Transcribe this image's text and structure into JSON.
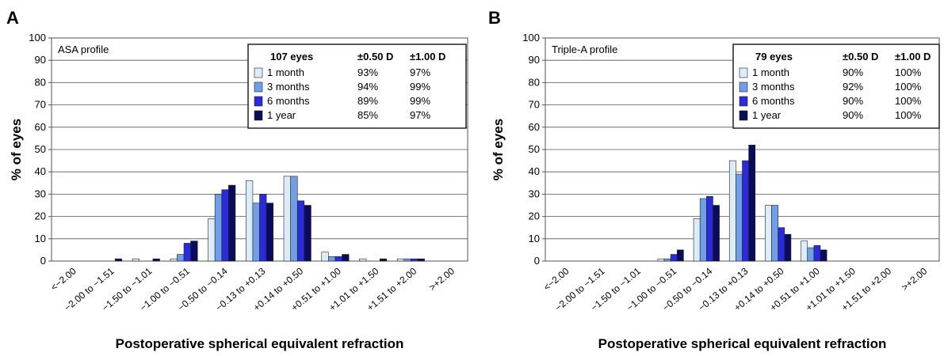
{
  "chart_data": [
    {
      "type": "bar",
      "panel": "A",
      "title": "ASA profile",
      "ylabel": "% of eyes",
      "xlabel": "Postoperative spherical equivalent refraction",
      "categories": [
        "<−2.00",
        "−2.00 to −1.51",
        "−1.50 to −1.01",
        "−1.00 to −0.51",
        "−0.50 to −0.14",
        "−0.13 to +0.13",
        "+0.14 to +0.50",
        "+0.51 to +1.00",
        "+1.01 to +1.50",
        "+1.51 to +2.00",
        ">+2.00"
      ],
      "series": [
        {
          "name": "1 month",
          "color": "#dcecf8",
          "values": [
            0,
            0,
            1,
            1,
            19,
            36,
            38,
            4,
            1,
            1,
            0
          ]
        },
        {
          "name": "3 months",
          "color": "#6f9fe6",
          "values": [
            0,
            0,
            0,
            3,
            30,
            26,
            38,
            2,
            0,
            1,
            0
          ]
        },
        {
          "name": "6 months",
          "color": "#2b2bd9",
          "values": [
            0,
            0,
            0,
            8,
            32,
            30,
            27,
            2,
            0,
            1,
            0
          ]
        },
        {
          "name": "1 year",
          "color": "#0b0b5c",
          "values": [
            0,
            1,
            1,
            9,
            34,
            26,
            25,
            3,
            1,
            1,
            0
          ]
        }
      ],
      "legend_table": {
        "header": [
          "107 eyes",
          "±0.50 D",
          "±1.00 D"
        ],
        "rows": [
          [
            "93%",
            "97%"
          ],
          [
            "94%",
            "99%"
          ],
          [
            "89%",
            "99%"
          ],
          [
            "85%",
            "97%"
          ]
        ]
      },
      "ylim": [
        0,
        100
      ],
      "yticks": [
        0,
        10,
        20,
        30,
        40,
        50,
        60,
        70,
        80,
        90,
        100
      ],
      "grid": true
    },
    {
      "type": "bar",
      "panel": "B",
      "title": "Triple-A profile",
      "ylabel": "% of eyes",
      "xlabel": "Postoperative spherical equivalent refraction",
      "categories": [
        "<−2.00",
        "−2.00 to −1.51",
        "−1.50 to −1.01",
        "−1.00 to −0.51",
        "−0.50 to −0.14",
        "−0.13 to +0.13",
        "+0.14 to +0.50",
        "+0.51 to +1.00",
        "+1.01 to +1.50",
        "+1.51 to +2.00",
        ">+2.00"
      ],
      "series": [
        {
          "name": "1 month",
          "color": "#dcecf8",
          "values": [
            0,
            0,
            0,
            1,
            19,
            45,
            25,
            9,
            0,
            0,
            0
          ]
        },
        {
          "name": "3 months",
          "color": "#6f9fe6",
          "values": [
            0,
            0,
            0,
            1,
            28,
            39,
            25,
            6,
            0,
            0,
            0
          ]
        },
        {
          "name": "6 months",
          "color": "#2b2bd9",
          "values": [
            0,
            0,
            0,
            3,
            29,
            45,
            15,
            7,
            0,
            0,
            0
          ]
        },
        {
          "name": "1 year",
          "color": "#0b0b5c",
          "values": [
            0,
            0,
            0,
            5,
            25,
            52,
            12,
            5,
            0,
            0,
            0
          ]
        }
      ],
      "legend_table": {
        "header": [
          "79 eyes",
          "±0.50 D",
          "±1.00 D"
        ],
        "rows": [
          [
            "90%",
            "100%"
          ],
          [
            "92%",
            "100%"
          ],
          [
            "90%",
            "100%"
          ],
          [
            "90%",
            "100%"
          ]
        ]
      },
      "ylim": [
        0,
        100
      ],
      "yticks": [
        0,
        10,
        20,
        30,
        40,
        50,
        60,
        70,
        80,
        90,
        100
      ],
      "grid": true
    }
  ]
}
